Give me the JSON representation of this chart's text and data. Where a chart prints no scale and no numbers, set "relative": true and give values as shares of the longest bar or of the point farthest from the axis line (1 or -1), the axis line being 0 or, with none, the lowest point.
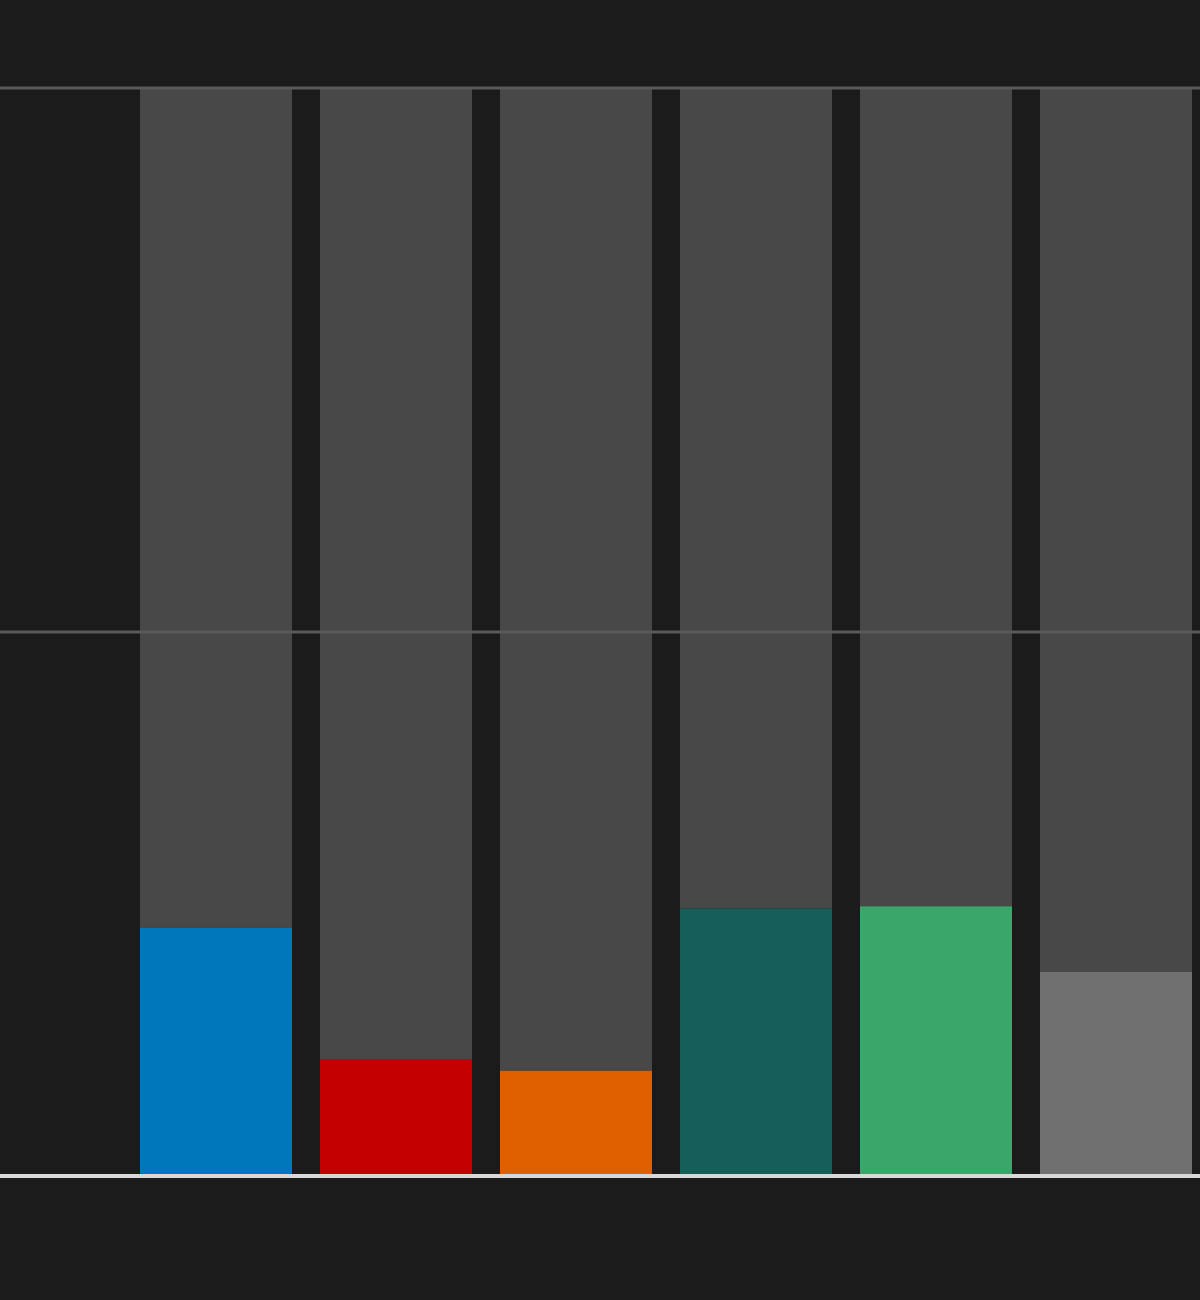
{
  "chart_data": {
    "type": "bar",
    "relative": true,
    "stacked": true,
    "ref_lines": [
      {
        "axis": "y",
        "value": 0.5,
        "color": "#5a5a5a"
      },
      {
        "axis": "y",
        "value": 1,
        "color": "#5a5a5a"
      }
    ],
    "categories": [
      null,
      null,
      null,
      null,
      null,
      null
    ],
    "series": [
      {
        "colors": [
          "#0077bb",
          "#c40000",
          "#e06000",
          "#155e5a",
          "#3ba66a",
          "#707070"
        ],
        "values": [
          0.228,
          0.107,
          0.097,
          0.246,
          0.248,
          0.1875
        ]
      },
      {
        "color": "#484848",
        "values": [
          0.772,
          0.893,
          0.903,
          0.754,
          0.752,
          0.8125
        ]
      }
    ]
  }
}
